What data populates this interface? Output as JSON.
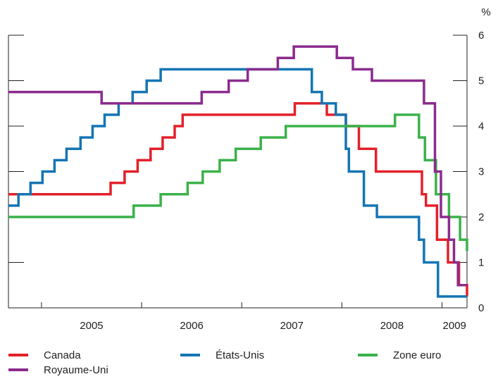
{
  "chart_data": {
    "type": "line",
    "step": true,
    "unit_label": "%",
    "y_axis": {
      "position": "right",
      "ylim": [
        0,
        6
      ],
      "ticks": [
        "0",
        "1",
        "2",
        "3",
        "4",
        "5",
        "6"
      ]
    },
    "x_axis": {
      "xlim": [
        2004.67,
        2009.25
      ],
      "tick_labels": [
        "2005",
        "2006",
        "2007",
        "2008",
        "2009"
      ],
      "year_boundaries": [
        2005,
        2006,
        2007,
        2008,
        2009
      ]
    },
    "grid": false,
    "legend_placement": "bottom",
    "series": [
      {
        "name": "Canada",
        "color": "#e3202a",
        "points": [
          [
            2004.67,
            2.5
          ],
          [
            2005.69,
            2.75
          ],
          [
            2005.83,
            3.0
          ],
          [
            2005.96,
            3.25
          ],
          [
            2006.09,
            3.5
          ],
          [
            2006.21,
            3.75
          ],
          [
            2006.33,
            4.0
          ],
          [
            2006.41,
            4.25
          ],
          [
            2007.53,
            4.5
          ],
          [
            2007.85,
            4.25
          ],
          [
            2008.04,
            4.0
          ],
          [
            2008.17,
            3.5
          ],
          [
            2008.34,
            3.0
          ],
          [
            2008.8,
            2.5
          ],
          [
            2008.84,
            2.25
          ],
          [
            2008.95,
            1.5
          ],
          [
            2009.06,
            1.0
          ],
          [
            2009.17,
            0.5
          ],
          [
            2009.25,
            0.25
          ]
        ]
      },
      {
        "name": "États-Unis",
        "color": "#1475b4",
        "points": [
          [
            2004.67,
            2.25
          ],
          [
            2004.77,
            2.5
          ],
          [
            2004.89,
            2.75
          ],
          [
            2005.01,
            3.0
          ],
          [
            2005.13,
            3.25
          ],
          [
            2005.25,
            3.5
          ],
          [
            2005.39,
            3.75
          ],
          [
            2005.51,
            4.0
          ],
          [
            2005.63,
            4.25
          ],
          [
            2005.77,
            4.5
          ],
          [
            2005.91,
            4.75
          ],
          [
            2006.05,
            5.0
          ],
          [
            2006.19,
            5.25
          ],
          [
            2007.7,
            4.75
          ],
          [
            2007.8,
            4.5
          ],
          [
            2007.94,
            4.25
          ],
          [
            2008.04,
            3.5
          ],
          [
            2008.07,
            3.0
          ],
          [
            2008.22,
            2.25
          ],
          [
            2008.35,
            2.0
          ],
          [
            2008.77,
            1.5
          ],
          [
            2008.82,
            1.0
          ],
          [
            2008.96,
            0.25
          ],
          [
            2009.25,
            0.25
          ]
        ]
      },
      {
        "name": "Zone euro",
        "color": "#3ab24a",
        "points": [
          [
            2004.67,
            2.0
          ],
          [
            2005.92,
            2.25
          ],
          [
            2006.19,
            2.5
          ],
          [
            2006.46,
            2.75
          ],
          [
            2006.61,
            3.0
          ],
          [
            2006.78,
            3.25
          ],
          [
            2006.94,
            3.5
          ],
          [
            2007.19,
            3.75
          ],
          [
            2007.44,
            4.0
          ],
          [
            2008.53,
            4.25
          ],
          [
            2008.77,
            3.75
          ],
          [
            2008.83,
            3.25
          ],
          [
            2008.94,
            2.5
          ],
          [
            2009.07,
            2.0
          ],
          [
            2009.18,
            1.5
          ],
          [
            2009.25,
            1.25
          ]
        ]
      },
      {
        "name": "Royaume-Uni",
        "color": "#8b2b8e",
        "points": [
          [
            2004.67,
            4.75
          ],
          [
            2005.6,
            4.5
          ],
          [
            2006.6,
            4.75
          ],
          [
            2006.87,
            5.0
          ],
          [
            2007.06,
            5.25
          ],
          [
            2007.36,
            5.5
          ],
          [
            2007.52,
            5.75
          ],
          [
            2007.95,
            5.5
          ],
          [
            2008.11,
            5.25
          ],
          [
            2008.3,
            5.0
          ],
          [
            2008.82,
            4.5
          ],
          [
            2008.93,
            3.0
          ],
          [
            2008.99,
            2.0
          ],
          [
            2009.07,
            1.5
          ],
          [
            2009.12,
            1.0
          ],
          [
            2009.16,
            0.5
          ],
          [
            2009.25,
            0.5
          ]
        ]
      }
    ]
  }
}
